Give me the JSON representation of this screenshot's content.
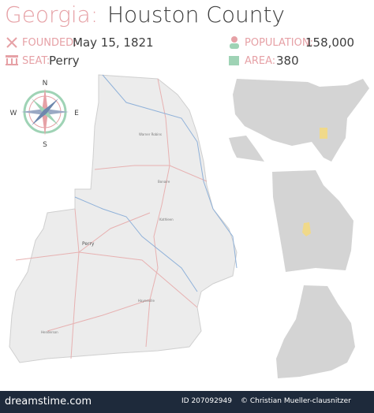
{
  "header": {
    "state": "Georgia:",
    "county": "Houston County"
  },
  "info": {
    "founded": {
      "label": "FOUNDED:",
      "value": "May 15, 1821"
    },
    "seat": {
      "label": "SEAT:",
      "value": "Perry"
    },
    "population": {
      "label": "POPULATION:",
      "value": "158,000"
    },
    "area": {
      "label": "AREA:",
      "value": "380"
    }
  },
  "compass": {
    "n": "N",
    "s": "S",
    "w": "W",
    "e": "E"
  },
  "map": {
    "towns": [
      "Perry",
      "Warner Robins",
      "Bonaire",
      "Kathleen",
      "Hayneville",
      "Henderson"
    ]
  },
  "footer": {
    "site": "dreamstime.com",
    "id": "ID 207092949",
    "credit": "© Christian Mueller-clausnitzer"
  }
}
